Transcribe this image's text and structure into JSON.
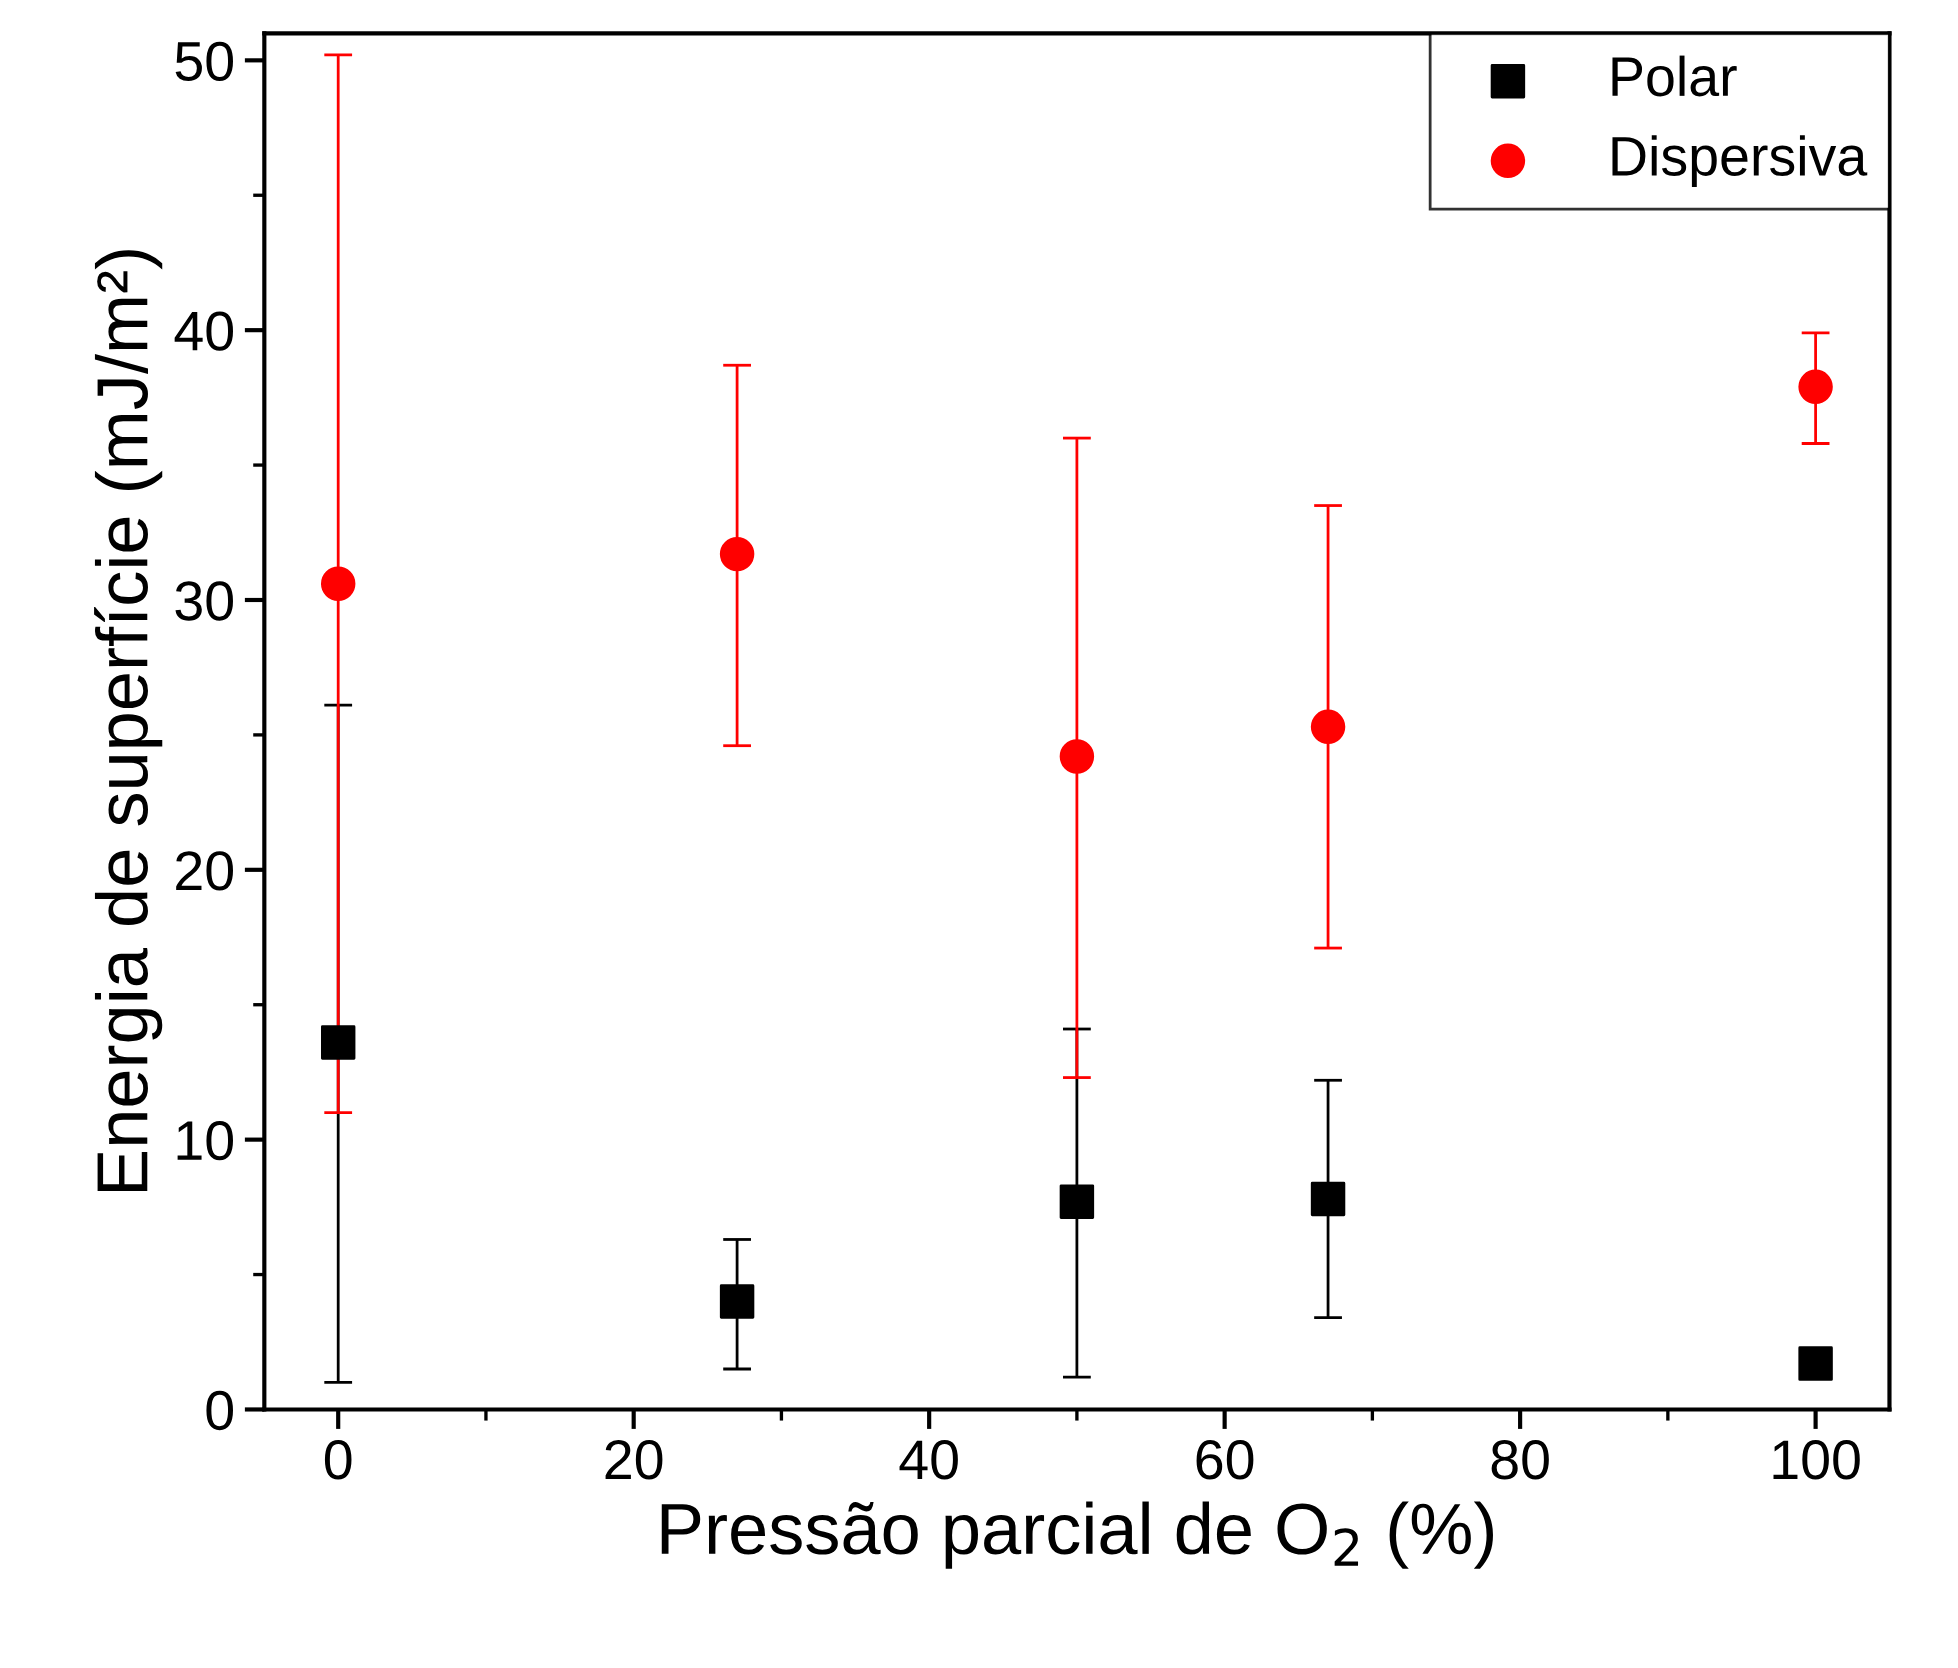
{
  "chart_data": {
    "type": "scatter",
    "xlabel": "Pressão parcial de O$_{2}$ (%)",
    "ylabel": "Energia de superfície (mJ/m²)",
    "x": [
      0,
      27,
      50,
      67,
      100
    ],
    "series": [
      {
        "name": "Polar",
        "color": "#000000",
        "marker": "square",
        "values": [
          13.6,
          4.0,
          7.7,
          7.8,
          1.7
        ],
        "errors": [
          [
            1.0,
            26.1
          ],
          [
            1.5,
            6.3
          ],
          [
            1.2,
            14.1
          ],
          [
            3.4,
            12.2
          ],
          null
        ]
      },
      {
        "name": "Dispersiva",
        "color": "#ff0000",
        "marker": "circle",
        "values": [
          30.6,
          31.7,
          24.2,
          25.3,
          37.9
        ],
        "errors": [
          [
            11.0,
            50.2
          ],
          [
            24.6,
            38.7
          ],
          [
            12.3,
            36.0
          ],
          [
            17.1,
            33.5
          ],
          [
            35.8,
            39.9
          ]
        ]
      }
    ],
    "xlim": [
      -5,
      105
    ],
    "xticks": [
      0,
      20,
      40,
      60,
      80,
      100
    ],
    "ylim": [
      0,
      51
    ],
    "yticks": [
      0,
      10,
      20,
      30,
      40,
      50
    ],
    "grid": false,
    "legend": "top right"
  }
}
